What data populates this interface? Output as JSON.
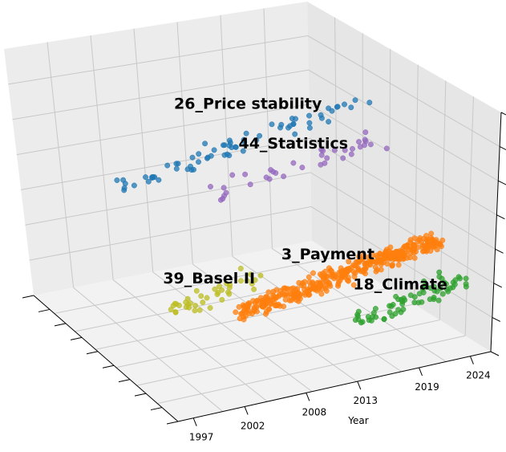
{
  "chart_data": {
    "type": "scatter",
    "projection": "3d",
    "title": "",
    "xlabel": "Year",
    "ylabel": "",
    "zlabel": "",
    "year_ticks": [
      "1997",
      "2002",
      "2008",
      "2013",
      "2019",
      "2024"
    ],
    "grid": true,
    "legend": "none",
    "clusters": [
      {
        "label": "26_Price stability",
        "color": "#1f77b4",
        "count": 70,
        "year_range": [
          1998,
          2023
        ],
        "depth": 0.55,
        "height": [
          0.66,
          0.82
        ]
      },
      {
        "label": "44_Statistics",
        "color": "#9467bd",
        "count": 36,
        "year_range": [
          2006,
          2023
        ],
        "depth": 0.45,
        "height": [
          0.62,
          0.7
        ]
      },
      {
        "label": "3_Payment",
        "color": "#ff7f0e",
        "count": 420,
        "year_range": [
          2004,
          2024
        ],
        "depth": 0.18,
        "height": [
          0.28,
          0.4
        ]
      },
      {
        "label": "39_Basel II",
        "color": "#bcbd22",
        "count": 40,
        "year_range": [
          1999,
          2008
        ],
        "depth": 0.3,
        "height": [
          0.27,
          0.34
        ]
      },
      {
        "label": "18_Climate",
        "color": "#2ca02c",
        "count": 70,
        "year_range": [
          2014,
          2024
        ],
        "depth": 0.05,
        "height": [
          0.22,
          0.3
        ]
      }
    ]
  }
}
